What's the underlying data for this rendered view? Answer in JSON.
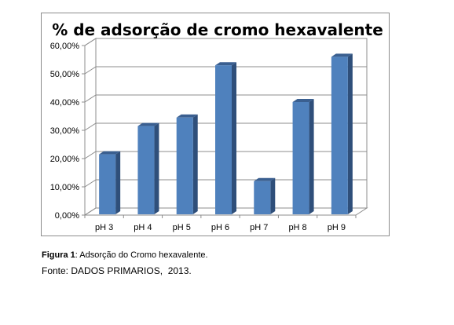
{
  "chart_data": {
    "type": "bar",
    "title": "% de adsorção de cromo hexavalente",
    "categories": [
      "pH 3",
      "pH 4",
      "pH 5",
      "pH 6",
      "pH 7",
      "pH 8",
      "pH 9"
    ],
    "values": [
      21.5,
      31.5,
      34.5,
      53.0,
      12.0,
      40.0,
      56.0
    ],
    "ylim": [
      0,
      60
    ],
    "yticks": [
      "0,00%",
      "10,00%",
      "20,00%",
      "30,00%",
      "40,00%",
      "50,00%",
      "60,00%"
    ],
    "grid": true,
    "bar_color": "#4f81bd"
  },
  "caption": {
    "label": "Figura 1",
    "text": ": Adsorção do Cromo hexavalente."
  },
  "source": "Fonte: DADOS PRIMARIOS,  2013."
}
